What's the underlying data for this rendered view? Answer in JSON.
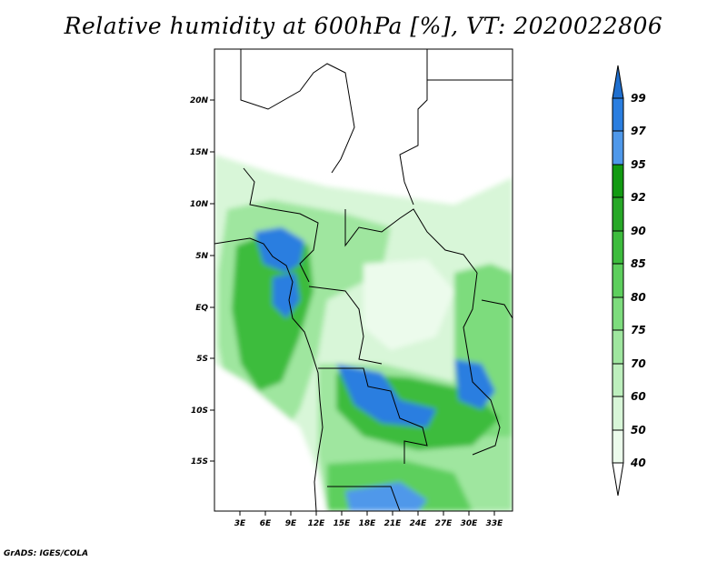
{
  "title": "Relative humidity at 600hPa [%], VT: 2020022806",
  "credit": "GrADS: IGES/COLA",
  "map": {
    "lat_labels": [
      "20N",
      "15N",
      "10N",
      "5N",
      "EQ",
      "5S",
      "10S",
      "15S"
    ],
    "lon_labels": [
      "3E",
      "6E",
      "9E",
      "12E",
      "15E",
      "18E",
      "21E",
      "24E",
      "27E",
      "30E",
      "33E"
    ]
  },
  "colorbar": {
    "levels": [
      "99",
      "97",
      "95",
      "92",
      "90",
      "85",
      "80",
      "75",
      "70",
      "60",
      "50",
      "40"
    ],
    "colors": {
      "top_arrow": "#1f6fcf",
      "b97_99": "#2a7ee0",
      "b95_97": "#4f98ea",
      "b92_95": "#129a12",
      "b90_92": "#27a827",
      "b85_90": "#3dbc3d",
      "b80_85": "#5dcf5d",
      "b75_80": "#7ddc7d",
      "b70_75": "#9fe69f",
      "b60_70": "#bdefbd",
      "b50_60": "#d8f6d8",
      "b40_50": "#ecfbec",
      "bottom_arrow": "#ffffff"
    }
  }
}
